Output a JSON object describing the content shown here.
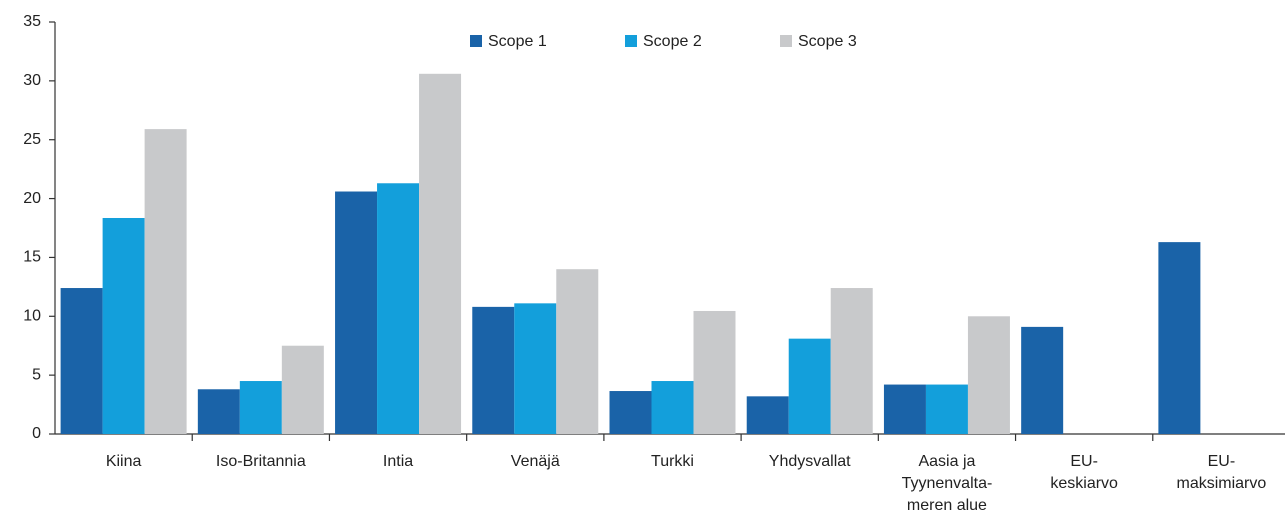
{
  "chart_data": {
    "type": "bar",
    "categories": [
      "Kiina",
      "Iso-Britannia",
      "Intia",
      "Venäjä",
      "Turkki",
      "Yhdysvallat",
      "Aasia ja\nTyynenvalta-\nmeren alue",
      "EU-\nkeskiarvo",
      "EU-\nmaksimiarvo"
    ],
    "series": [
      {
        "name": "Scope 1",
        "color": "#1a63a8",
        "values": [
          12.4,
          3.8,
          20.6,
          10.8,
          3.65,
          3.2,
          4.2,
          9.1,
          16.3
        ]
      },
      {
        "name": "Scope 2",
        "color": "#139fdb",
        "values": [
          18.35,
          4.5,
          21.3,
          11.1,
          4.5,
          8.1,
          4.2,
          null,
          null
        ]
      },
      {
        "name": "Scope 3",
        "color": "#c8c9cb",
        "values": [
          25.9,
          7.5,
          30.6,
          14.0,
          10.45,
          12.4,
          10.0,
          null,
          null
        ]
      }
    ],
    "ylim": [
      0,
      35
    ],
    "yticks": [
      0,
      5,
      10,
      15,
      20,
      25,
      30,
      35
    ],
    "grid": false,
    "legend": "top"
  }
}
